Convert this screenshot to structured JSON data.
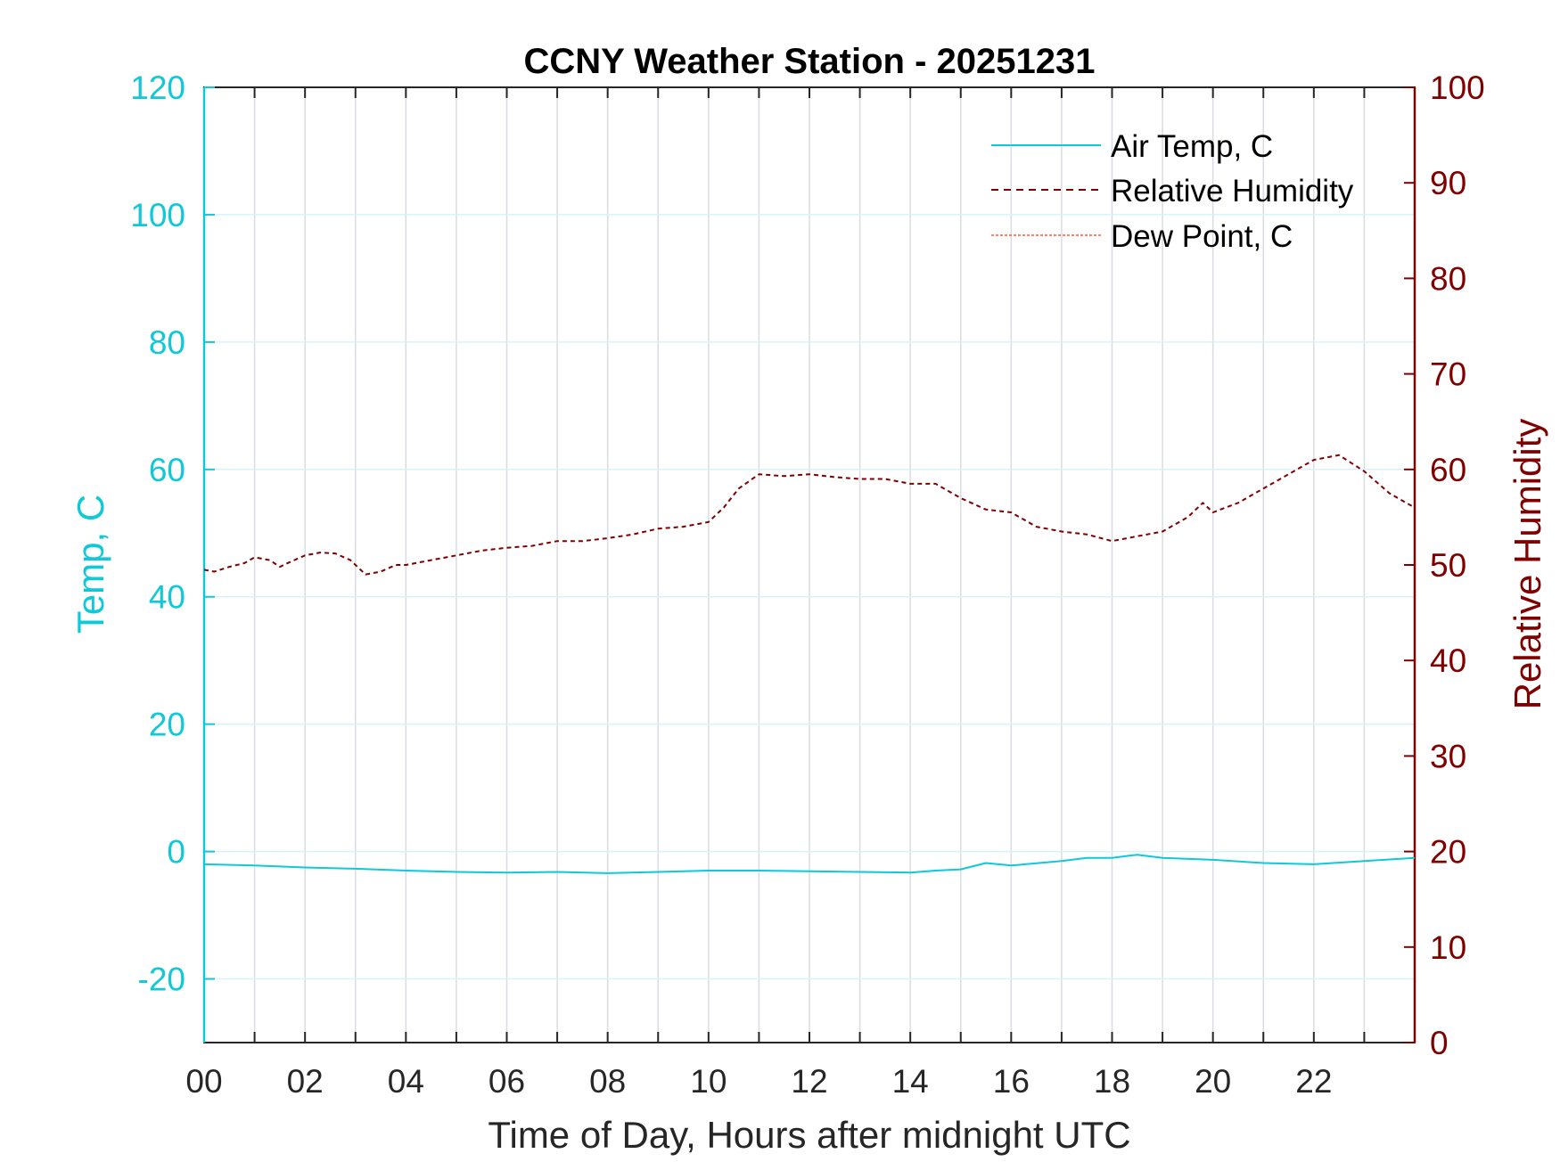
{
  "chart_data": {
    "type": "line",
    "title": "CCNY Weather Station - 20251231",
    "xlabel": "Time of Day, Hours after midnight UTC",
    "ylabel_left": "Temp, C",
    "ylabel_right": "Relative Humidity",
    "xlim": [
      0,
      24
    ],
    "ylim_left": [
      -30,
      120
    ],
    "ylim_right": [
      0,
      100
    ],
    "x_ticks": [
      0,
      2,
      4,
      6,
      8,
      10,
      12,
      14,
      16,
      18,
      20,
      22
    ],
    "x_tick_labels": [
      "00",
      "02",
      "04",
      "06",
      "08",
      "10",
      "12",
      "14",
      "16",
      "18",
      "20",
      "22"
    ],
    "y_left_ticks": [
      -20,
      0,
      20,
      40,
      60,
      80,
      100,
      120
    ],
    "y_left_tick_labels": [
      "-20",
      "0",
      "20",
      "40",
      "60",
      "80",
      "100",
      "120"
    ],
    "y_right_ticks": [
      0,
      10,
      20,
      30,
      40,
      50,
      60,
      70,
      80,
      90,
      100
    ],
    "y_right_tick_labels": [
      "0",
      "10",
      "20",
      "30",
      "40",
      "50",
      "60",
      "70",
      "80",
      "90",
      "100"
    ],
    "grid": true,
    "legend_position": "top-right",
    "colors": {
      "left_axis": "#0fc8d8",
      "right_axis": "#800000",
      "air_temp": "#0fc8d8",
      "relative_humidity": "#800000",
      "dew_point": "#ff5a3c"
    },
    "series": [
      {
        "name": "Air Temp, C",
        "axis": "left",
        "style": "solid",
        "x": [
          0,
          1,
          2,
          3,
          4,
          5,
          6,
          7,
          8,
          9,
          10,
          11,
          12,
          13,
          14,
          14.5,
          15,
          15.5,
          16,
          17,
          17.5,
          18,
          18.5,
          19,
          20,
          21,
          22,
          23,
          24
        ],
        "values": [
          -2,
          -2.2,
          -2.5,
          -2.7,
          -3,
          -3.2,
          -3.3,
          -3.2,
          -3.4,
          -3.2,
          -3,
          -3,
          -3.1,
          -3.2,
          -3.3,
          -3.0,
          -2.8,
          -1.8,
          -2.2,
          -1.5,
          -1.0,
          -1.0,
          -0.5,
          -1.0,
          -1.3,
          -1.8,
          -2.0,
          -1.5,
          -1.0
        ]
      },
      {
        "name": "Relative Humidity",
        "axis": "right",
        "style": "dashed",
        "x": [
          0,
          0.2,
          0.5,
          0.8,
          1,
          1.3,
          1.5,
          1.7,
          2,
          2.3,
          2.6,
          2.9,
          3.2,
          3.5,
          3.8,
          4,
          4.5,
          5,
          5.5,
          6,
          6.5,
          7,
          7.5,
          8,
          8.5,
          9,
          9.5,
          10,
          10.3,
          10.6,
          11,
          11.5,
          12,
          12.5,
          13,
          13.5,
          14,
          14.5,
          15,
          15.5,
          16,
          16.5,
          17,
          17.5,
          18,
          18.5,
          19,
          19.5,
          19.8,
          20,
          20.5,
          21,
          21.5,
          22,
          22.5,
          23,
          23.5,
          24
        ],
        "values": [
          49.5,
          49.3,
          49.8,
          50.2,
          50.8,
          50.5,
          49.8,
          50.3,
          51,
          51.3,
          51.2,
          50.5,
          49,
          49.3,
          50,
          50,
          50.5,
          51,
          51.5,
          51.8,
          52,
          52.5,
          52.5,
          52.8,
          53.2,
          53.8,
          54,
          54.5,
          56,
          58,
          59.5,
          59.3,
          59.5,
          59.2,
          59,
          59,
          58.5,
          58.5,
          57,
          55.8,
          55.5,
          54,
          53.5,
          53.2,
          52.5,
          53,
          53.5,
          55,
          56.5,
          55.5,
          56.5,
          58,
          59.5,
          61,
          61.5,
          59.8,
          57.5,
          56
        ]
      },
      {
        "name": "Dew Point, C",
        "axis": "left",
        "style": "dotted",
        "x": [],
        "values": []
      }
    ]
  }
}
